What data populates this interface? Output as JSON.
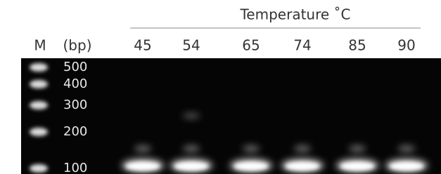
{
  "header": {
    "title": "Temperature ˚C"
  },
  "columns": {
    "marker": "M",
    "unit": "(bp)",
    "temperatures": [
      45,
      54,
      65,
      74,
      85,
      90
    ]
  },
  "ladder": [
    500,
    400,
    300,
    200,
    100
  ]
}
